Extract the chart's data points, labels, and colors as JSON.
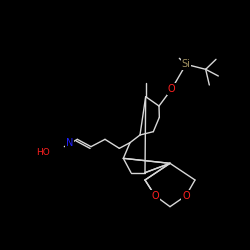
{
  "background_color": "#000000",
  "bond_color": "#d8d8d8",
  "atom_colors": {
    "O": "#ff2020",
    "N": "#2020ff",
    "Si": "#a09060",
    "C": "#d8d8d8"
  },
  "figsize": [
    2.5,
    2.5
  ],
  "dpi": 100
}
